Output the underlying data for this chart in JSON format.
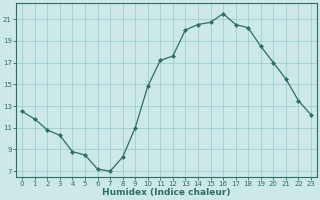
{
  "x": [
    0,
    1,
    2,
    3,
    4,
    5,
    6,
    7,
    8,
    9,
    10,
    11,
    12,
    13,
    14,
    15,
    16,
    17,
    18,
    19,
    20,
    21,
    22,
    23
  ],
  "y": [
    12.5,
    11.8,
    10.8,
    10.3,
    8.8,
    8.5,
    7.2,
    7.0,
    8.3,
    11.0,
    14.8,
    17.2,
    17.6,
    20.0,
    20.5,
    20.7,
    21.5,
    20.5,
    20.2,
    18.5,
    17.0,
    15.5,
    13.5,
    12.2
  ],
  "line_color": "#2e6e63",
  "marker": "D",
  "marker_size": 2,
  "bg_color": "#cde8e8",
  "grid_color": "#9ecece",
  "xlabel": "Humidex (Indice chaleur)",
  "xlim": [
    -0.5,
    23.5
  ],
  "ylim": [
    6.5,
    22.5
  ],
  "yticks": [
    7,
    9,
    11,
    13,
    15,
    17,
    19,
    21
  ],
  "xticks": [
    0,
    1,
    2,
    3,
    4,
    5,
    6,
    7,
    8,
    9,
    10,
    11,
    12,
    13,
    14,
    15,
    16,
    17,
    18,
    19,
    20,
    21,
    22,
    23
  ],
  "tick_color": "#2e6e63",
  "font_color": "#2e6e63",
  "tick_fontsize": 5.0,
  "xlabel_fontsize": 6.5
}
